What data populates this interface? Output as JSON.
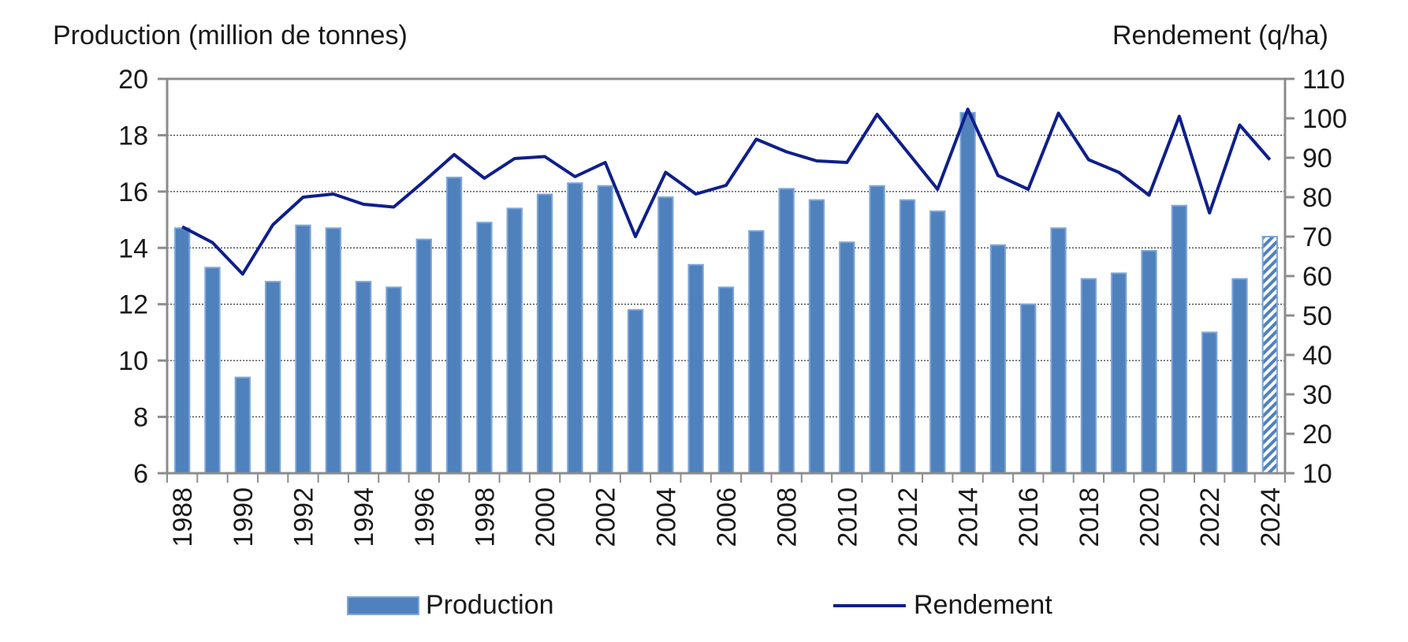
{
  "chart_data": {
    "type": "bar+line",
    "title": "",
    "ylabel_left": "Production (million de tonnes)",
    "ylabel_right": "Rendement (q/ha)",
    "ylim_left": [
      6,
      20
    ],
    "yticks_left": [
      6,
      8,
      10,
      12,
      14,
      16,
      18,
      20
    ],
    "ylim_right": [
      10,
      110
    ],
    "yticks_right": [
      10,
      20,
      30,
      40,
      50,
      60,
      70,
      80,
      90,
      100,
      110
    ],
    "grid": "horizontal dashed",
    "categories": [
      1988,
      1989,
      1990,
      1991,
      1992,
      1993,
      1994,
      1995,
      1996,
      1997,
      1998,
      1999,
      2000,
      2001,
      2002,
      2003,
      2004,
      2005,
      2006,
      2007,
      2008,
      2009,
      2010,
      2011,
      2012,
      2013,
      2014,
      2015,
      2016,
      2017,
      2018,
      2019,
      2020,
      2021,
      2022,
      2023,
      2024
    ],
    "xtick_labels": [
      "1988",
      "1990",
      "1992",
      "1994",
      "1996",
      "1998",
      "2000",
      "2002",
      "2004",
      "2006",
      "2008",
      "2010",
      "2012",
      "2014",
      "2016",
      "2018",
      "2020",
      "2022",
      "2024"
    ],
    "series": [
      {
        "name": "Production",
        "type": "bar",
        "axis": "left",
        "color": "#4f81bd",
        "values": [
          14.7,
          13.3,
          9.4,
          12.8,
          14.8,
          14.7,
          12.8,
          12.6,
          14.3,
          16.5,
          14.9,
          15.4,
          15.9,
          16.3,
          16.2,
          11.8,
          15.8,
          13.4,
          12.6,
          14.6,
          16.1,
          15.7,
          14.2,
          16.2,
          15.7,
          15.3,
          18.8,
          14.1,
          12.0,
          14.7,
          12.9,
          13.1,
          13.9,
          15.5,
          11.0,
          12.9,
          14.4
        ],
        "estimated_last": true
      },
      {
        "name": "Rendement",
        "type": "line",
        "axis": "right",
        "color": "#0f1f8a",
        "values": [
          72.5,
          68.5,
          60.5,
          73,
          80,
          80.8,
          78.2,
          77.5,
          84,
          90.8,
          84.8,
          89.8,
          90.3,
          85.2,
          88.8,
          70,
          86.3,
          80.8,
          83,
          94.7,
          91.5,
          89.2,
          88.8,
          101,
          91.5,
          82,
          102.3,
          85.5,
          82,
          101.3,
          89.5,
          86.3,
          80.5,
          100.5,
          76,
          98.3,
          89.5
        ]
      }
    ],
    "legend": [
      "Production",
      "Rendement"
    ],
    "legend_position": "bottom"
  }
}
